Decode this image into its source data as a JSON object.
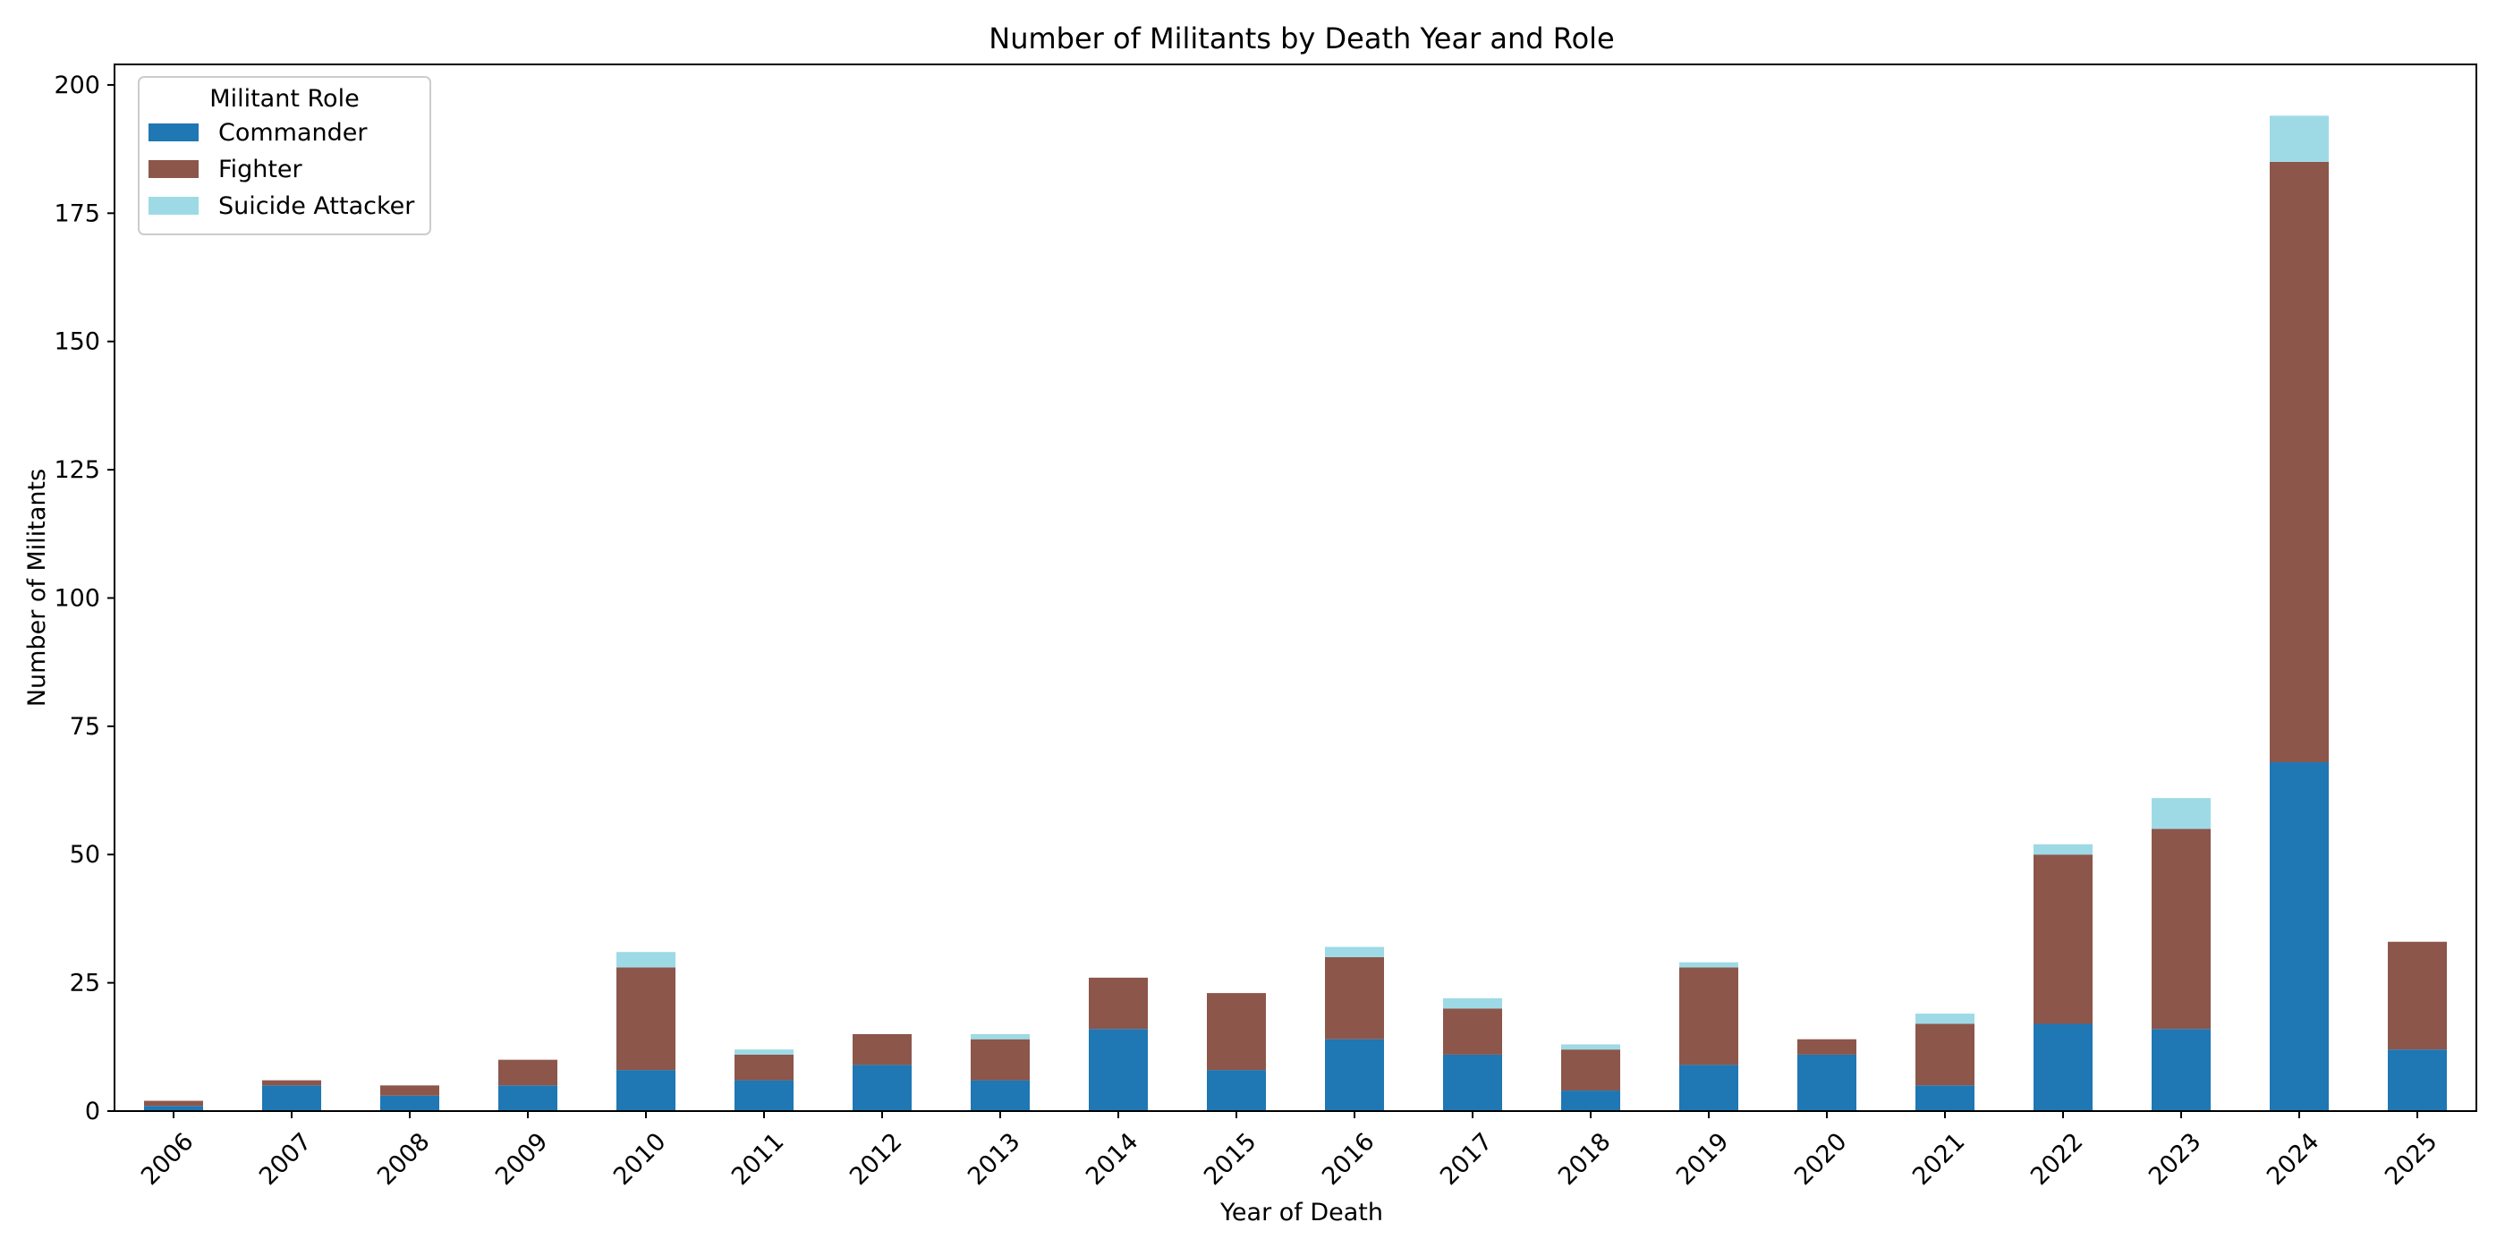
{
  "chart_data": {
    "type": "bar",
    "stacked": true,
    "title": "Number of Militants by Death Year and Role",
    "xlabel": "Year of Death",
    "ylabel": "Number of Militants",
    "ylim": [
      0,
      204
    ],
    "yticks": [
      0,
      25,
      50,
      75,
      100,
      125,
      150,
      175,
      200
    ],
    "grid": false,
    "legend": {
      "title": "Militant Role",
      "placement": "top-left"
    },
    "categories": [
      "2006",
      "2007",
      "2008",
      "2009",
      "2010",
      "2011",
      "2012",
      "2013",
      "2014",
      "2015",
      "2016",
      "2017",
      "2018",
      "2019",
      "2020",
      "2021",
      "2022",
      "2023",
      "2024",
      "2025"
    ],
    "series": [
      {
        "name": "Commander",
        "color": "#1f77b4",
        "values": [
          1,
          5,
          3,
          5,
          8,
          6,
          9,
          6,
          16,
          8,
          14,
          11,
          4,
          9,
          11,
          5,
          17,
          16,
          68,
          12
        ]
      },
      {
        "name": "Fighter",
        "color": "#8c564b",
        "values": [
          1,
          1,
          2,
          5,
          20,
          5,
          6,
          8,
          10,
          15,
          16,
          9,
          8,
          19,
          3,
          12,
          33,
          39,
          117,
          21
        ]
      },
      {
        "name": "Suicide Attacker",
        "color": "#9edae5",
        "values": [
          0,
          0,
          0,
          0,
          3,
          1,
          0,
          1,
          0,
          0,
          2,
          2,
          1,
          1,
          0,
          2,
          2,
          6,
          9,
          0
        ]
      }
    ]
  }
}
